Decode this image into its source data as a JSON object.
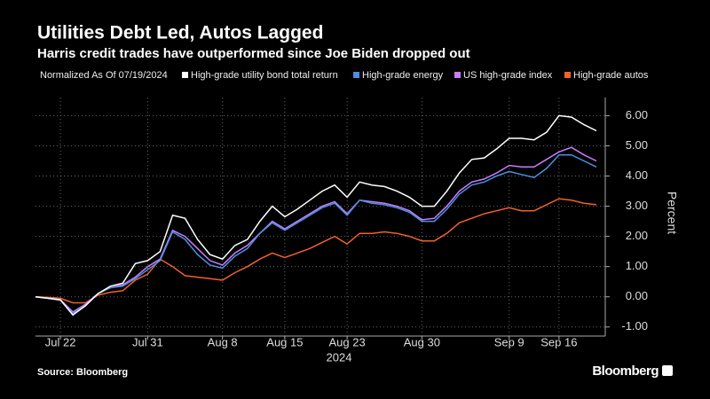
{
  "chart_data": {
    "type": "line",
    "title": "Utilities Debt Led, Autos Lagged",
    "subtitle": "Harris credit trades have outperformed since Joe Biden dropped out",
    "legend_note": "Normalized As Of 07/19/2024",
    "y_axis_label": "Percent",
    "x_axis_label": "2024",
    "source": "Source: Bloomberg",
    "brand": "Bloomberg",
    "categories": [
      null,
      null,
      "Jul 22",
      null,
      null,
      null,
      null,
      null,
      null,
      "Jul 31",
      null,
      null,
      null,
      null,
      null,
      "Aug 8",
      null,
      null,
      null,
      null,
      "Aug 15",
      null,
      null,
      null,
      null,
      "Aug 23",
      null,
      null,
      null,
      null,
      null,
      "Aug 30",
      null,
      null,
      null,
      null,
      null,
      null,
      "Sep 9",
      null,
      null,
      null,
      "Sep 16",
      null,
      null,
      null
    ],
    "ylim": [
      -1.3,
      6.6
    ],
    "yticks": [
      {
        "value": -1,
        "label": "-1.00"
      },
      {
        "value": 0,
        "label": "0.00"
      },
      {
        "value": 1,
        "label": "1.00"
      },
      {
        "value": 2,
        "label": "2.00"
      },
      {
        "value": 3,
        "label": "3.00"
      },
      {
        "value": 4,
        "label": "4.00"
      },
      {
        "value": 5,
        "label": "5.00"
      },
      {
        "value": 6,
        "label": "6.00"
      }
    ],
    "grid": true,
    "series": [
      {
        "name": "High-grade utility bond total return",
        "color": "#ffffff",
        "values": [
          0,
          -0.05,
          -0.1,
          -0.6,
          -0.3,
          0.1,
          0.35,
          0.45,
          1.1,
          1.2,
          1.5,
          2.7,
          2.6,
          1.9,
          1.4,
          1.25,
          1.7,
          1.9,
          2.5,
          3.0,
          2.65,
          2.9,
          3.2,
          3.5,
          3.7,
          3.3,
          3.8,
          3.7,
          3.65,
          3.5,
          3.3,
          3.0,
          3.0,
          3.5,
          4.1,
          4.55,
          4.6,
          4.9,
          5.25,
          5.25,
          5.2,
          5.45,
          6.0,
          5.95,
          5.7,
          5.5
        ]
      },
      {
        "name": "High-grade energy",
        "color": "#4a90e2",
        "values": [
          0,
          -0.05,
          -0.12,
          -0.55,
          -0.3,
          0.1,
          0.3,
          0.35,
          0.6,
          0.9,
          1.2,
          2.15,
          1.9,
          1.4,
          1.05,
          0.95,
          1.35,
          1.6,
          2.1,
          2.45,
          2.2,
          2.45,
          2.7,
          2.95,
          3.1,
          2.7,
          3.2,
          3.1,
          3.05,
          2.95,
          2.8,
          2.5,
          2.5,
          2.9,
          3.4,
          3.7,
          3.8,
          4.0,
          4.15,
          4.05,
          3.95,
          4.25,
          4.7,
          4.7,
          4.5,
          4.3
        ]
      },
      {
        "name": "US high-grade index",
        "color": "#c77dff",
        "values": [
          0,
          -0.05,
          -0.1,
          -0.5,
          -0.25,
          0.1,
          0.3,
          0.4,
          0.65,
          1.0,
          1.25,
          2.2,
          2.0,
          1.6,
          1.2,
          1.05,
          1.45,
          1.7,
          2.1,
          2.5,
          2.25,
          2.5,
          2.75,
          3.0,
          3.15,
          2.75,
          3.2,
          3.15,
          3.1,
          3.0,
          2.85,
          2.55,
          2.6,
          3.0,
          3.5,
          3.8,
          3.9,
          4.1,
          4.35,
          4.3,
          4.3,
          4.55,
          4.8,
          4.95,
          4.7,
          4.5
        ]
      },
      {
        "name": "High-grade autos",
        "color": "#f2612d",
        "values": [
          0,
          -0.02,
          -0.05,
          -0.2,
          -0.2,
          0.05,
          0.15,
          0.2,
          0.55,
          0.75,
          1.25,
          1.0,
          0.7,
          0.65,
          0.6,
          0.55,
          0.8,
          1.0,
          1.25,
          1.45,
          1.3,
          1.45,
          1.6,
          1.8,
          2.0,
          1.75,
          2.1,
          2.1,
          2.15,
          2.1,
          2.0,
          1.85,
          1.85,
          2.1,
          2.45,
          2.6,
          2.75,
          2.85,
          2.95,
          2.85,
          2.85,
          3.05,
          3.25,
          3.2,
          3.1,
          3.05
        ]
      }
    ]
  }
}
